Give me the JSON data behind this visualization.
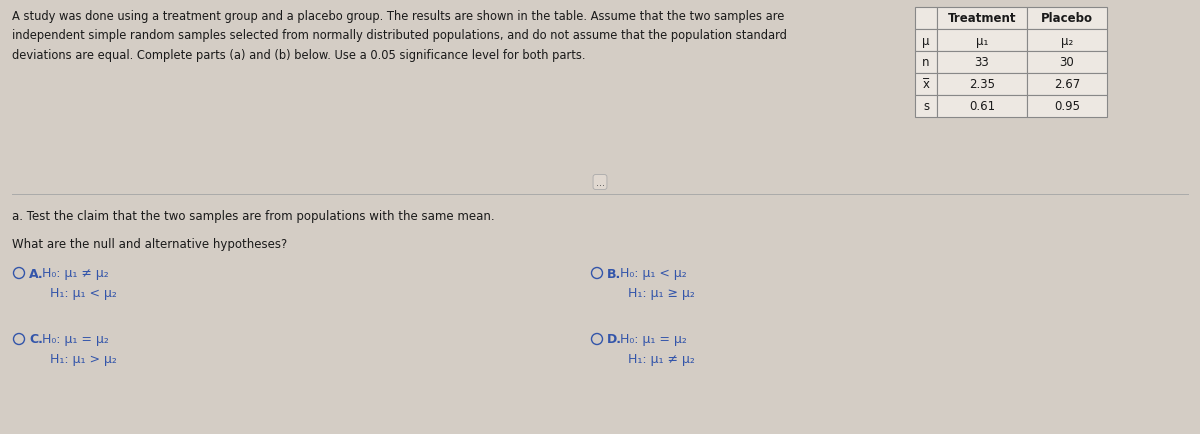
{
  "bg_color": "#d4cdc5",
  "white_bg": "#f0ece6",
  "title_text": "A study was done using a treatment group and a placebo group. The results are shown in the table. Assume that the two samples are\nindependent simple random samples selected from normally distributed populations, and do not assume that the population standard\ndeviations are equal. Complete parts (a) and (b) below. Use a 0.05 significance level for both parts.",
  "table_headers": [
    "",
    "Treatment",
    "Placebo"
  ],
  "table_rows": [
    [
      "μ",
      "μ₁",
      "μ₂"
    ],
    [
      "n",
      "33",
      "30"
    ],
    [
      "x̅",
      "2.35",
      "2.67"
    ],
    [
      "s",
      "0.61",
      "0.95"
    ]
  ],
  "part_a_label": "a. Test the claim that the two samples are from populations with the same mean.",
  "question_label": "What are the null and alternative hypotheses?",
  "options": [
    {
      "letter": "A",
      "line1": "H₀: μ₁ ≠ μ₂",
      "line2": "H₁: μ₁ < μ₂",
      "col": 0,
      "row": 0
    },
    {
      "letter": "B",
      "line1": "H₀: μ₁ < μ₂",
      "line2": "H₁: μ₁ ≥ μ₂",
      "col": 1,
      "row": 0
    },
    {
      "letter": "C",
      "line1": "H₀: μ₁ = μ₂",
      "line2": "H₁: μ₁ > μ₂",
      "col": 0,
      "row": 1
    },
    {
      "letter": "D",
      "line1": "H₀: μ₁ = μ₂",
      "line2": "H₁: μ₁ ≠ μ₂",
      "col": 1,
      "row": 1
    }
  ],
  "text_color": "#1a1a1a",
  "option_color": "#3355aa",
  "table_cell_bg": "#ede8e2",
  "table_header_bg": "#ede8e2",
  "table_border": "#888888"
}
